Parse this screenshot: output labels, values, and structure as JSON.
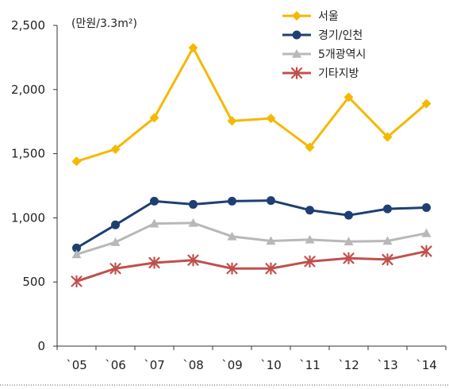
{
  "chart_data": {
    "type": "line",
    "unit_note": "(만원/3.3m²)",
    "categories": [
      "`05",
      "`06",
      "`07",
      "`08",
      "`09",
      "`10",
      "`11",
      "`12",
      "`13",
      "`14"
    ],
    "ylim": [
      0,
      2500
    ],
    "yticks": [
      0,
      500,
      1000,
      1500,
      2000,
      2500
    ],
    "ytick_labels": [
      "0",
      "500",
      "1,000",
      "1,500",
      "2,000",
      "2,500"
    ],
    "grid": false,
    "legend_position": "top-right",
    "series": [
      {
        "name": "서울",
        "color": "#f5b800",
        "marker": "diamond",
        "values": [
          1440,
          1535,
          1780,
          2325,
          1755,
          1775,
          1550,
          1940,
          1630,
          1890
        ]
      },
      {
        "name": "경기/인천",
        "color": "#1f3f73",
        "marker": "circle",
        "values": [
          765,
          945,
          1130,
          1105,
          1130,
          1135,
          1060,
          1020,
          1070,
          1080
        ]
      },
      {
        "name": "5개광역시",
        "color": "#b8b8b8",
        "marker": "triangle",
        "values": [
          715,
          810,
          955,
          960,
          855,
          820,
          830,
          815,
          820,
          880
        ]
      },
      {
        "name": "기타지방",
        "color": "#c0504d",
        "marker": "asterisk",
        "values": [
          505,
          605,
          650,
          670,
          605,
          605,
          660,
          685,
          675,
          740
        ]
      }
    ]
  }
}
